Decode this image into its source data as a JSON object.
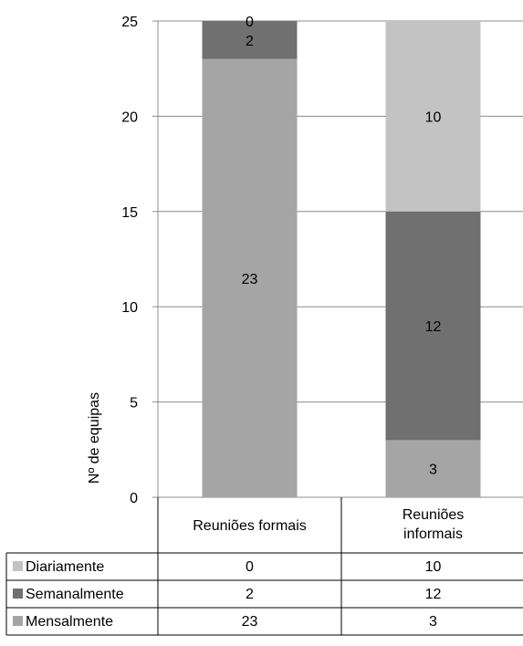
{
  "chart_data": {
    "type": "bar",
    "stacked": true,
    "categories": [
      "Reuniões formais",
      "Reuniões informais"
    ],
    "category_lines": [
      [
        "Reuniões formais"
      ],
      [
        "Reuniões",
        "informais"
      ]
    ],
    "series": [
      {
        "name": "Mensalmente",
        "values": [
          23,
          3
        ],
        "color": "#a5a5a5"
      },
      {
        "name": "Semanalmente",
        "values": [
          2,
          12
        ],
        "color": "#707070"
      },
      {
        "name": "Diariamente",
        "values": [
          0,
          10
        ],
        "color": "#c3c3c3"
      }
    ],
    "table_rows": [
      "Diariamente",
      "Semanalmente",
      "Mensalmente"
    ],
    "ylabel": "Nº de equipas",
    "xlabel": "",
    "title": "",
    "ylim": [
      0,
      25
    ],
    "yticks": [
      0,
      5,
      10,
      15,
      20,
      25
    ],
    "grid": true,
    "legend": "data-table"
  }
}
